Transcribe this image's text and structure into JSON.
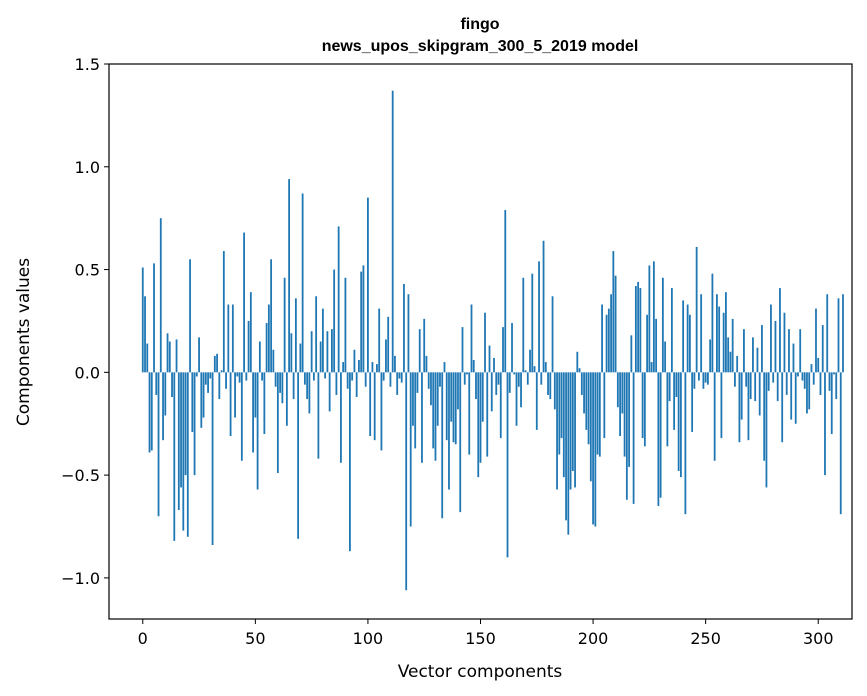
{
  "chart_data": {
    "type": "bar",
    "title_line1": "fingo",
    "title_line2": "news_upos_skipgram_300_5_2019 model",
    "xlabel": "Vector components",
    "ylabel": "Components values",
    "xlim": [
      -15,
      315
    ],
    "ylim": [
      -1.2,
      1.5
    ],
    "xticks": [
      0,
      50,
      100,
      150,
      200,
      250,
      300
    ],
    "xtick_labels": [
      "0",
      "50",
      "100",
      "150",
      "200",
      "250",
      "300"
    ],
    "yticks": [
      -1.0,
      -0.5,
      0.0,
      0.5,
      1.0,
      1.5
    ],
    "ytick_labels": [
      "−1.0",
      "−0.5",
      "0.0",
      "0.5",
      "1.0",
      "1.5"
    ],
    "bar_color": "#1f77b4",
    "values": [
      0.51,
      0.37,
      0.14,
      -0.39,
      -0.38,
      0.53,
      -0.11,
      -0.7,
      0.75,
      -0.33,
      -0.21,
      0.19,
      0.15,
      -0.12,
      -0.82,
      0.16,
      -0.67,
      -0.56,
      -0.77,
      -0.5,
      -0.8,
      0.55,
      -0.29,
      -0.5,
      -0.02,
      0.17,
      -0.27,
      -0.22,
      -0.06,
      -0.1,
      -0.03,
      -0.84,
      0.08,
      0.09,
      -0.13,
      0.01,
      0.59,
      -0.08,
      0.33,
      -0.31,
      0.33,
      -0.22,
      -0.02,
      -0.05,
      -0.43,
      0.68,
      -0.04,
      0.25,
      0.39,
      -0.39,
      -0.22,
      -0.57,
      0.15,
      -0.04,
      -0.3,
      0.24,
      0.33,
      0.55,
      0.11,
      -0.07,
      -0.49,
      -0.1,
      -0.15,
      0.46,
      -0.26,
      0.94,
      0.19,
      -0.13,
      0.36,
      -0.81,
      0.14,
      0.87,
      -0.06,
      -0.13,
      -0.2,
      0.2,
      -0.04,
      0.37,
      -0.42,
      0.15,
      0.31,
      -0.03,
      0.2,
      -0.19,
      0.21,
      0.5,
      -0.11,
      0.71,
      -0.44,
      0.05,
      0.46,
      -0.08,
      -0.87,
      -0.04,
      0.11,
      -0.12,
      0.06,
      0.49,
      0.52,
      -0.07,
      0.85,
      -0.31,
      0.05,
      -0.33,
      0.04,
      0.31,
      -0.38,
      -0.04,
      0.16,
      0.27,
      -0.07,
      1.37,
      0.08,
      -0.11,
      -0.03,
      -0.05,
      0.43,
      -1.06,
      0.38,
      -0.75,
      -0.26,
      -0.37,
      -0.1,
      0.21,
      -0.44,
      0.26,
      0.08,
      -0.08,
      -0.16,
      -0.37,
      -0.43,
      -0.26,
      -0.07,
      -0.71,
      0.05,
      -0.33,
      -0.57,
      -0.24,
      -0.34,
      -0.35,
      -0.18,
      -0.68,
      0.22,
      -0.06,
      -0.01,
      -0.4,
      0.33,
      0.06,
      -0.13,
      -0.51,
      -0.44,
      -0.24,
      0.29,
      -0.41,
      0.13,
      -0.19,
      0.07,
      -0.11,
      -0.06,
      -0.32,
      0.22,
      0.79,
      -0.9,
      -0.1,
      0.24,
      -0.01,
      -0.26,
      -0.07,
      -0.17,
      0.46,
      0.01,
      -0.06,
      0.11,
      0.48,
      0.03,
      -0.28,
      0.54,
      -0.06,
      0.64,
      0.05,
      -0.11,
      -0.13,
      0.37,
      -0.18,
      -0.57,
      -0.4,
      -0.32,
      -0.51,
      -0.72,
      -0.79,
      -0.57,
      -0.48,
      -0.56,
      0.1,
      0.02,
      -0.11,
      -0.2,
      -0.28,
      -0.35,
      -0.53,
      -0.74,
      -0.75,
      -0.4,
      -0.41,
      0.33,
      -0.32,
      0.28,
      0.31,
      0.38,
      0.59,
      0.47,
      -0.17,
      -0.31,
      -0.2,
      -0.41,
      -0.62,
      -0.46,
      0.18,
      -0.64,
      0.42,
      0.44,
      0.41,
      -0.32,
      -0.36,
      0.28,
      0.52,
      0.05,
      0.54,
      0.26,
      -0.65,
      -0.61,
      0.46,
      0.15,
      -0.36,
      -0.14,
      0.41,
      -0.28,
      -0.12,
      -0.48,
      -0.51,
      0.35,
      -0.69,
      0.33,
      0.28,
      -0.29,
      -0.08,
      0.61,
      -0.04,
      0.38,
      -0.08,
      -0.05,
      -0.06,
      0.16,
      0.48,
      -0.43,
      0.38,
      0.32,
      -0.32,
      0.29,
      0.39,
      0.17,
      0.1,
      0.26,
      -0.07,
      0.08,
      -0.34,
      -0.23,
      0.21,
      -0.07,
      -0.33,
      -0.13,
      0.17,
      -0.14,
      0.12,
      -0.21,
      0.23,
      -0.43,
      -0.56,
      -0.09,
      0.33,
      -0.05,
      0.25,
      -0.14,
      0.41,
      -0.34,
      0.29,
      -0.11,
      0.21,
      -0.23,
      0.14,
      -0.25,
      -0.02,
      0.21,
      -0.04,
      -0.08,
      -0.2,
      -0.18,
      0.04,
      -0.06,
      0.31,
      0.07,
      -0.11,
      0.23,
      -0.5,
      0.38,
      -0.09,
      -0.3,
      -0.01,
      -0.13,
      0.36,
      -0.69,
      0.38
    ]
  }
}
